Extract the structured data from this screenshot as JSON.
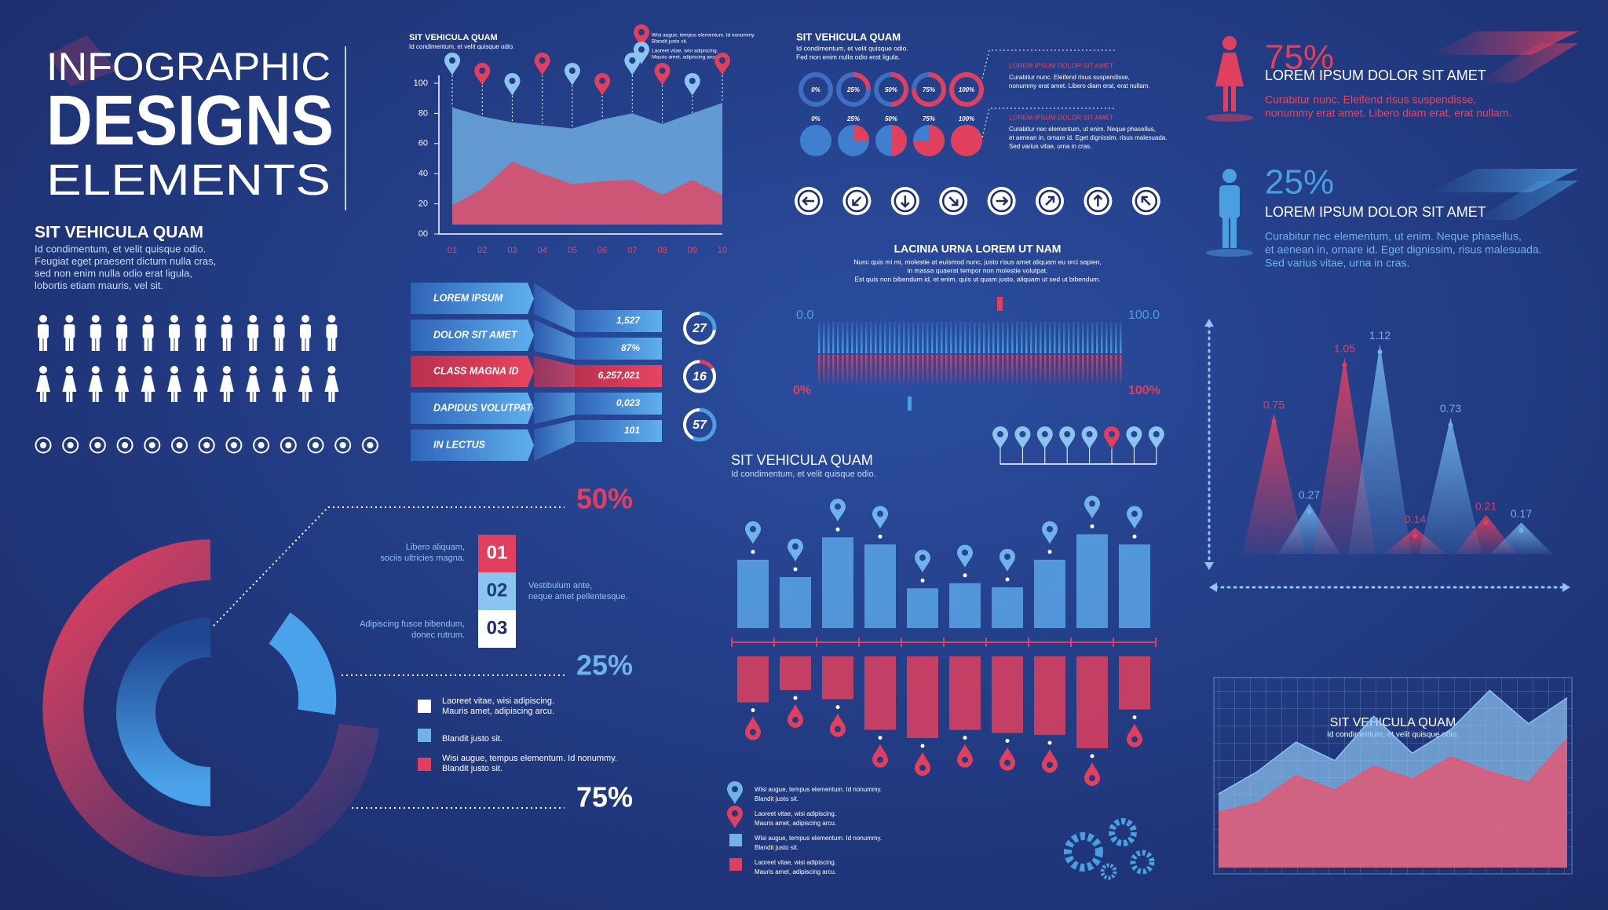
{
  "header": {
    "lines": [
      "INFOGRAPHIC",
      "DESIGNS",
      "ELEMENTS"
    ]
  },
  "intro": {
    "title": "SIT VEHICULA QUAM",
    "lines": [
      "Id condimentum, et velit quisque odio.",
      "Feugiat eget praesent dictum nulla cras,",
      "sed non enim nulla odio erat ligula,",
      "lobortis etiam mauris, vel sit."
    ]
  },
  "area_legend": [
    [
      "Wisi augue, tempus elementum. Id nonummy.",
      "Blandit justo sit."
    ],
    [
      "Laoreet vitae, wisi adipiscing.",
      "Mauris amet, adipiscing arcu."
    ]
  ],
  "funnel": {
    "labels": [
      "LOREM IPSUM",
      "DOLOR SIT AMET",
      "CLASS MAGNA ID",
      "DAPIDUS VOLUTPAT",
      "IN LECTUS"
    ],
    "values": [
      "1,527",
      "87%",
      "6,257,021",
      "0,023",
      "101"
    ]
  },
  "donut_notes": [
    {
      "title": "LOREM IPSUM DOLOR SIT AMET",
      "lines": [
        "Curabitur nunc. Eleifend risus suspendisse,",
        "nonummy erat amet. Libero diam erat, erat nullam."
      ]
    },
    {
      "title": "LOREM IPSUM DOLOR SIT AMET",
      "lines": [
        "Curabitur nec elementum, ut enim. Neque phasellus,",
        "et aenean in, ornare id. Eget dignissim, risus malesuada.",
        "Sed varius vitae, urna in cras."
      ]
    }
  ],
  "wave": {
    "title": "LACINIA URNA LOREM UT NAM",
    "lines": [
      "Nunc quis mi mi, molestie at euismod nunc, justo risus amet aliquam eu orci sapien,",
      "in massa quaerat tempor non molestie volutpat.",
      "Est quis non bibendum id, et enim, quis ut quam justo, aliquam ut sed ut bibendum."
    ],
    "top_left": "0.0",
    "top_right": "100.0",
    "bottom_left": "0%",
    "bottom_right": "100%"
  },
  "people": [
    {
      "percent": "75%",
      "title": "LOREM IPSUM DOLOR SIT AMET",
      "lines": [
        "Curabitur nunc. Eleifend risus suspendisse,",
        "nonummy erat amet. Libero diam erat, erat nullam."
      ]
    },
    {
      "percent": "25%",
      "title": "LOREM IPSUM DOLOR SIT AMET",
      "lines": [
        "Curabitur nec elementum, ut enim. Neque phasellus,",
        "et aenean in, ornare id. Eget dignissim, risus malesuada.",
        "Sed varius vitae, urna in cras."
      ]
    }
  ],
  "ring": {
    "percents": [
      "50%",
      "25%",
      "75%"
    ],
    "steps": [
      "01",
      "02",
      "03"
    ],
    "step_notes": [
      [
        "Libero aliquam,",
        "sociis ultricies magna."
      ],
      [
        "Vestibulum ante,",
        "neque amet pellentesque."
      ],
      [
        "Adipiscing fusce bibendum,",
        "donec rutrum."
      ]
    ],
    "legend": [
      [
        "Laoreet vitae, wisi adipiscing.",
        "Mauris amet, adipiscing arcu."
      ],
      [
        "Blandit justo sit."
      ],
      [
        "Wisi augue, tempus elementum. Id nonummy.",
        "Blandit justo sit."
      ]
    ]
  },
  "bar_legend": [
    [
      "Wisi augue, tempus elementum. Id nonummy.",
      "Blandit justo sit."
    ],
    [
      "Laoreet vitae, wisi adipiscing.",
      "Mauris amet, adipiscing arcu."
    ],
    [
      "Wisi augue, tempus elementum. Id nonummy.",
      "Blandit justo sit."
    ],
    [
      "Laoreet vitae, wisi adipiscing.",
      "Mauris amet, adipiscing arcu."
    ]
  ],
  "chart_data": [
    {
      "type": "area",
      "title": "SIT VEHICULA QUAM",
      "subtitle": "Id condimentum, et velit quisque odio.",
      "categories": [
        "01",
        "02",
        "03",
        "04",
        "05",
        "06",
        "07",
        "08",
        "09",
        "10"
      ],
      "series": [
        {
          "color": "#7cc0f0",
          "values": [
            84,
            78,
            74,
            72,
            70,
            76,
            80,
            73,
            80,
            87
          ]
        },
        {
          "color": "#e8455f",
          "values": [
            19,
            30,
            48,
            40,
            33,
            35,
            36,
            26,
            36,
            26
          ]
        }
      ],
      "ylim": [
        0,
        100
      ],
      "yticks": [
        {
          "value": 0,
          "label": "00"
        },
        20,
        40,
        60,
        80,
        100
      ]
    },
    {
      "type": "donut",
      "title": "SIT VEHICULA QUAM",
      "subtitle": [
        "Id condimentum, et velit quisque odio.",
        "Fed non enim nulla odio erat ligula."
      ],
      "values": [
        0,
        25,
        50,
        75,
        100
      ],
      "value_labels": [
        "0%",
        "25%",
        "50%",
        "75%",
        "100%"
      ],
      "ylim": [
        0,
        100
      ],
      "color": "#e0405e"
    },
    {
      "type": "gauge",
      "values": [
        27,
        16,
        57
      ],
      "ylim": [
        0,
        100
      ],
      "colors": [
        "#4a9fe0",
        "#e0405e",
        "#4a9fe0"
      ]
    },
    {
      "type": "bar",
      "title": "SIT VEHICULA QUAM",
      "subtitle": "Id condimentum, et velit quisque odio.",
      "categories": [
        null,
        null,
        null,
        null,
        null,
        null,
        null,
        null,
        null,
        null
      ],
      "series": [
        {
          "color": "#5aa6e6",
          "values": [
            67,
            50,
            89,
            82,
            39,
            44,
            40,
            67,
            92,
            82
          ]
        },
        {
          "color": "#e0405e",
          "values": [
            -45,
            -33,
            -42,
            -72,
            -80,
            -72,
            -75,
            -77,
            -90,
            -52
          ]
        }
      ],
      "ylim": [
        -100,
        100
      ]
    },
    {
      "type": "peaks",
      "categories": [
        null,
        null,
        null,
        null,
        null,
        null,
        null,
        null
      ],
      "values": [
        0.75,
        0.27,
        1.05,
        1.12,
        0.14,
        0.73,
        0.21,
        0.17
      ],
      "colors": [
        "#e0405e",
        "#6fb3ea",
        "#e0405e",
        "#6fb3ea",
        "#e0405e",
        "#6fb3ea",
        "#e0405e",
        "#6fb3ea"
      ],
      "ylim": [
        0,
        1.2
      ]
    },
    {
      "type": "area",
      "title": "SIT VEHICULA QUAM",
      "subtitle": "Id condimentum, et velit quisque odio.",
      "categories": [
        null,
        null,
        null,
        null,
        null,
        null,
        null,
        null,
        null,
        null
      ],
      "series": [
        {
          "color": "#8ec5f2",
          "values": [
            40,
            52,
            68,
            58,
            82,
            62,
            75,
            96,
            78,
            92
          ]
        },
        {
          "color": "#e8556f",
          "values": [
            30,
            35,
            50,
            42,
            55,
            48,
            60,
            52,
            46,
            70
          ]
        }
      ],
      "ylim": [
        0,
        100
      ]
    }
  ]
}
